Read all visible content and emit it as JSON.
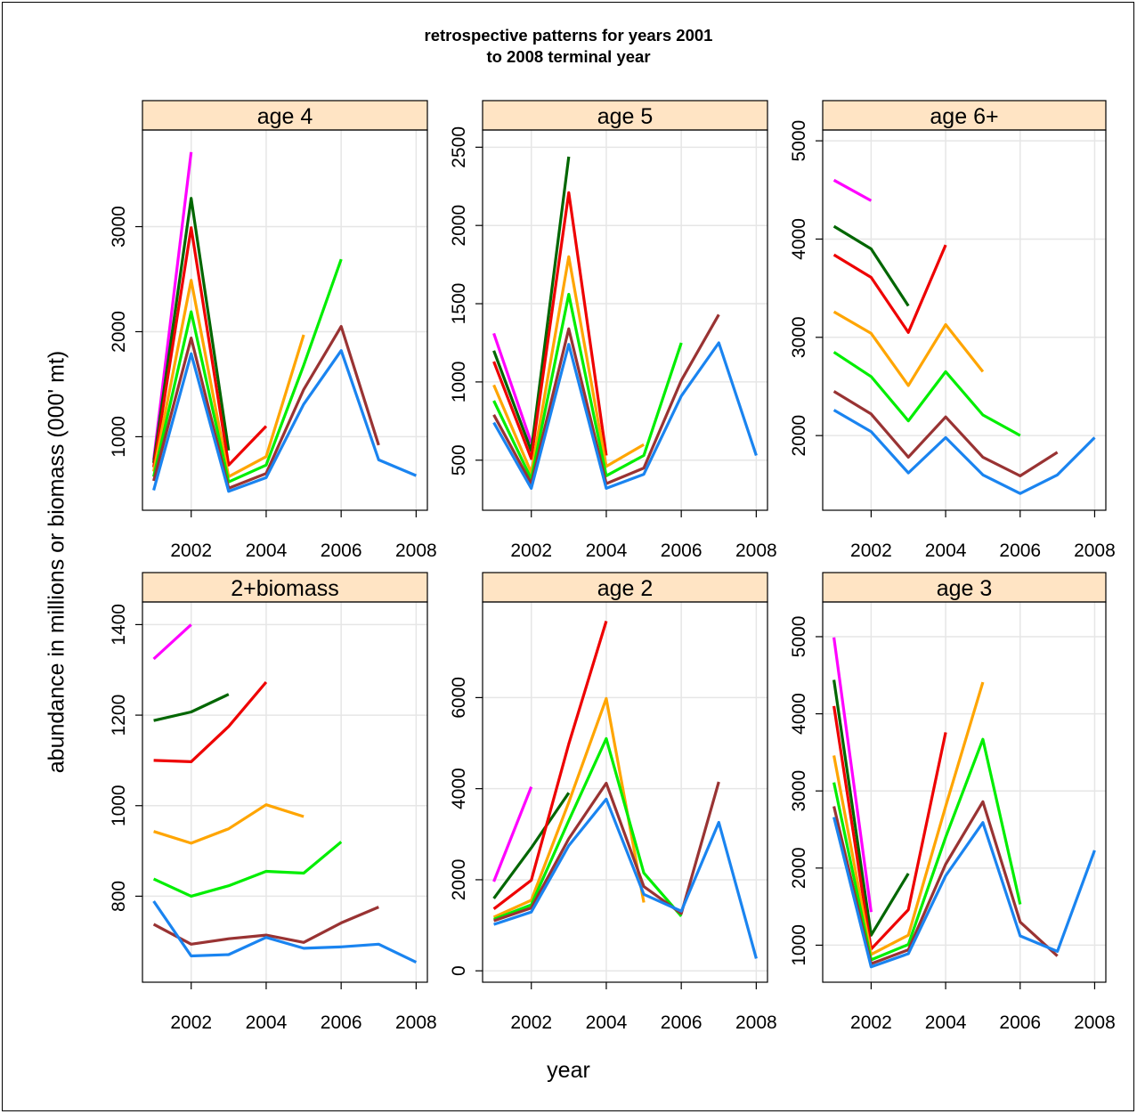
{
  "title": "retrospective patterns for years 2001\nto 2008 terminal year",
  "xlabel": "year",
  "ylabel": "abundance in millions or biomass (000' mt)",
  "colors": {
    "2008": "#1a84f0",
    "2007": "#993333",
    "2006": "#00ee00",
    "2005": "#ffa500",
    "2004": "#ee0000",
    "2003": "#006600",
    "2002": "#ff00ff",
    "strip": "#ffe4c4",
    "grid": "#e6e6e6"
  },
  "chart_data": [
    {
      "type": "line",
      "panel": "age 4",
      "x_ticks": [
        2002,
        2004,
        2006,
        2008
      ],
      "xlim": [
        2000.7,
        2008.3
      ],
      "y_ticks": [
        1000,
        2000,
        3000
      ],
      "ylim": [
        300,
        3920
      ],
      "series": [
        {
          "terminal": "2008",
          "x": [
            2001,
            2002,
            2003,
            2004,
            2005,
            2006,
            2007,
            2008
          ],
          "values": [
            490,
            1790,
            480,
            610,
            1310,
            1820,
            780,
            630
          ]
        },
        {
          "terminal": "2007",
          "x": [
            2001,
            2002,
            2003,
            2004,
            2005,
            2006,
            2007
          ],
          "values": [
            580,
            1940,
            510,
            650,
            1450,
            2050,
            920
          ]
        },
        {
          "terminal": "2006",
          "x": [
            2001,
            2002,
            2003,
            2004,
            2005,
            2006
          ],
          "values": [
            620,
            2190,
            570,
            730,
            1680,
            2690
          ]
        },
        {
          "terminal": "2005",
          "x": [
            2001,
            2002,
            2003,
            2004,
            2005
          ],
          "values": [
            670,
            2490,
            620,
            810,
            1970
          ]
        },
        {
          "terminal": "2004",
          "x": [
            2001,
            2002,
            2003,
            2004
          ],
          "values": [
            710,
            2990,
            730,
            1100
          ]
        },
        {
          "terminal": "2003",
          "x": [
            2001,
            2002,
            2003
          ],
          "values": [
            750,
            3270,
            870
          ]
        },
        {
          "terminal": "2002",
          "x": [
            2001,
            2002
          ],
          "values": [
            780,
            3710
          ]
        }
      ]
    },
    {
      "type": "line",
      "panel": "age 5",
      "x_ticks": [
        2002,
        2004,
        2006,
        2008
      ],
      "xlim": [
        2000.7,
        2008.3
      ],
      "y_ticks": [
        500,
        1000,
        1500,
        2000,
        2500
      ],
      "ylim": [
        180,
        2610
      ],
      "series": [
        {
          "terminal": "2008",
          "x": [
            2001,
            2002,
            2003,
            2004,
            2005,
            2006,
            2007,
            2008
          ],
          "values": [
            740,
            320,
            1240,
            320,
            410,
            910,
            1250,
            530
          ]
        },
        {
          "terminal": "2007",
          "x": [
            2001,
            2002,
            2003,
            2004,
            2005,
            2006,
            2007
          ],
          "values": [
            790,
            350,
            1340,
            350,
            450,
            1010,
            1430
          ]
        },
        {
          "terminal": "2006",
          "x": [
            2001,
            2002,
            2003,
            2004,
            2005,
            2006
          ],
          "values": [
            880,
            380,
            1560,
            400,
            530,
            1250
          ]
        },
        {
          "terminal": "2005",
          "x": [
            2001,
            2002,
            2003,
            2004,
            2005
          ],
          "values": [
            980,
            420,
            1800,
            460,
            600
          ]
        },
        {
          "terminal": "2004",
          "x": [
            2001,
            2002,
            2003,
            2004
          ],
          "values": [
            1130,
            510,
            2210,
            530
          ]
        },
        {
          "terminal": "2003",
          "x": [
            2001,
            2002,
            2003
          ],
          "values": [
            1200,
            560,
            2440
          ]
        },
        {
          "terminal": "2002",
          "x": [
            2001,
            2002
          ],
          "values": [
            1310,
            610
          ]
        }
      ]
    },
    {
      "type": "line",
      "panel": "age 6+",
      "x_ticks": [
        2002,
        2004,
        2006,
        2008
      ],
      "xlim": [
        2000.7,
        2008.3
      ],
      "y_ticks": [
        2000,
        3000,
        4000,
        5000
      ],
      "ylim": [
        1240,
        5110
      ],
      "series": [
        {
          "terminal": "2008",
          "x": [
            2001,
            2002,
            2003,
            2004,
            2005,
            2006,
            2007,
            2008
          ],
          "values": [
            2260,
            2040,
            1620,
            1980,
            1600,
            1410,
            1600,
            1980
          ]
        },
        {
          "terminal": "2007",
          "x": [
            2001,
            2002,
            2003,
            2004,
            2005,
            2006,
            2007
          ],
          "values": [
            2450,
            2220,
            1780,
            2190,
            1780,
            1590,
            1830
          ]
        },
        {
          "terminal": "2006",
          "x": [
            2001,
            2002,
            2003,
            2004,
            2005,
            2006
          ],
          "values": [
            2850,
            2600,
            2150,
            2650,
            2210,
            2000
          ]
        },
        {
          "terminal": "2005",
          "x": [
            2001,
            2002,
            2003,
            2004,
            2005
          ],
          "values": [
            3260,
            3040,
            2510,
            3130,
            2650
          ]
        },
        {
          "terminal": "2004",
          "x": [
            2001,
            2002,
            2003,
            2004
          ],
          "values": [
            3840,
            3610,
            3050,
            3940
          ]
        },
        {
          "terminal": "2003",
          "x": [
            2001,
            2002,
            2003
          ],
          "values": [
            4130,
            3900,
            3320
          ]
        },
        {
          "terminal": "2002",
          "x": [
            2001,
            2002
          ],
          "values": [
            4600,
            4390
          ]
        }
      ]
    },
    {
      "type": "line",
      "panel": "2+biomass",
      "x_ticks": [
        2002,
        2004,
        2006,
        2008
      ],
      "xlim": [
        2000.7,
        2008.3
      ],
      "y_ticks": [
        800,
        1000,
        1200,
        1400
      ],
      "ylim": [
        610,
        1450
      ],
      "series": [
        {
          "terminal": "2008",
          "x": [
            2001,
            2002,
            2003,
            2004,
            2005,
            2006,
            2007,
            2008
          ],
          "values": [
            789,
            668,
            671,
            709,
            685,
            688,
            694,
            654
          ]
        },
        {
          "terminal": "2007",
          "x": [
            2001,
            2002,
            2003,
            2004,
            2005,
            2006,
            2007
          ],
          "values": [
            738,
            694,
            706,
            714,
            698,
            741,
            776
          ]
        },
        {
          "terminal": "2006",
          "x": [
            2001,
            2002,
            2003,
            2004,
            2005,
            2006
          ],
          "values": [
            838,
            800,
            823,
            855,
            851,
            920
          ]
        },
        {
          "terminal": "2005",
          "x": [
            2001,
            2002,
            2003,
            2004,
            2005
          ],
          "values": [
            943,
            917,
            949,
            1002,
            976
          ]
        },
        {
          "terminal": "2004",
          "x": [
            2001,
            2002,
            2003,
            2004
          ],
          "values": [
            1100,
            1097,
            1175,
            1273
          ]
        },
        {
          "terminal": "2003",
          "x": [
            2001,
            2002,
            2003
          ],
          "values": [
            1188,
            1207,
            1246
          ]
        },
        {
          "terminal": "2002",
          "x": [
            2001,
            2002
          ],
          "values": [
            1324,
            1400
          ]
        }
      ]
    },
    {
      "type": "line",
      "panel": "age 2",
      "x_ticks": [
        2002,
        2004,
        2006,
        2008
      ],
      "xlim": [
        2000.7,
        2008.3
      ],
      "y_ticks": [
        0,
        2000,
        4000,
        6000
      ],
      "ylim": [
        -250,
        8100
      ],
      "series": [
        {
          "terminal": "2008",
          "x": [
            2001,
            2002,
            2003,
            2004,
            2005,
            2006,
            2007,
            2008
          ],
          "values": [
            1020,
            1290,
            2750,
            3770,
            1680,
            1310,
            3260,
            270
          ]
        },
        {
          "terminal": "2007",
          "x": [
            2001,
            2002,
            2003,
            2004,
            2005,
            2006,
            2007
          ],
          "values": [
            1100,
            1380,
            2900,
            4120,
            1850,
            1260,
            4150
          ]
        },
        {
          "terminal": "2006",
          "x": [
            2001,
            2002,
            2003,
            2004,
            2005,
            2006
          ],
          "values": [
            1130,
            1450,
            3300,
            5100,
            2150,
            1200
          ]
        },
        {
          "terminal": "2005",
          "x": [
            2001,
            2002,
            2003,
            2004,
            2005
          ],
          "values": [
            1180,
            1550,
            3700,
            5980,
            1500
          ]
        },
        {
          "terminal": "2004",
          "x": [
            2001,
            2002,
            2003,
            2004
          ],
          "values": [
            1360,
            1990,
            4980,
            7680
          ]
        },
        {
          "terminal": "2003",
          "x": [
            2001,
            2002,
            2003
          ],
          "values": [
            1590,
            2700,
            3910
          ]
        },
        {
          "terminal": "2002",
          "x": [
            2001,
            2002
          ],
          "values": [
            1960,
            4040
          ]
        }
      ]
    },
    {
      "type": "line",
      "panel": "age 3",
      "x_ticks": [
        2002,
        2004,
        2006,
        2008
      ],
      "xlim": [
        2000.7,
        2008.3
      ],
      "y_ticks": [
        1000,
        2000,
        3000,
        4000,
        5000
      ],
      "ylim": [
        520,
        5450
      ],
      "series": [
        {
          "terminal": "2008",
          "x": [
            2001,
            2002,
            2003,
            2004,
            2005,
            2006,
            2007,
            2008
          ],
          "values": [
            2660,
            720,
            890,
            1900,
            2590,
            1120,
            920,
            2230
          ]
        },
        {
          "terminal": "2007",
          "x": [
            2001,
            2002,
            2003,
            2004,
            2005,
            2006,
            2007
          ],
          "values": [
            2800,
            760,
            940,
            2050,
            2860,
            1300,
            860
          ]
        },
        {
          "terminal": "2006",
          "x": [
            2001,
            2002,
            2003,
            2004,
            2005,
            2006
          ],
          "values": [
            3110,
            810,
            1010,
            2400,
            3670,
            1530
          ]
        },
        {
          "terminal": "2005",
          "x": [
            2001,
            2002,
            2003,
            2004,
            2005
          ],
          "values": [
            3460,
            880,
            1130,
            2800,
            4410
          ]
        },
        {
          "terminal": "2004",
          "x": [
            2001,
            2002,
            2003,
            2004
          ],
          "values": [
            4100,
            950,
            1460,
            3760
          ]
        },
        {
          "terminal": "2003",
          "x": [
            2001,
            2002,
            2003
          ],
          "values": [
            4440,
            1130,
            1930
          ]
        },
        {
          "terminal": "2002",
          "x": [
            2001,
            2002
          ],
          "values": [
            4990,
            1430
          ]
        }
      ]
    }
  ]
}
